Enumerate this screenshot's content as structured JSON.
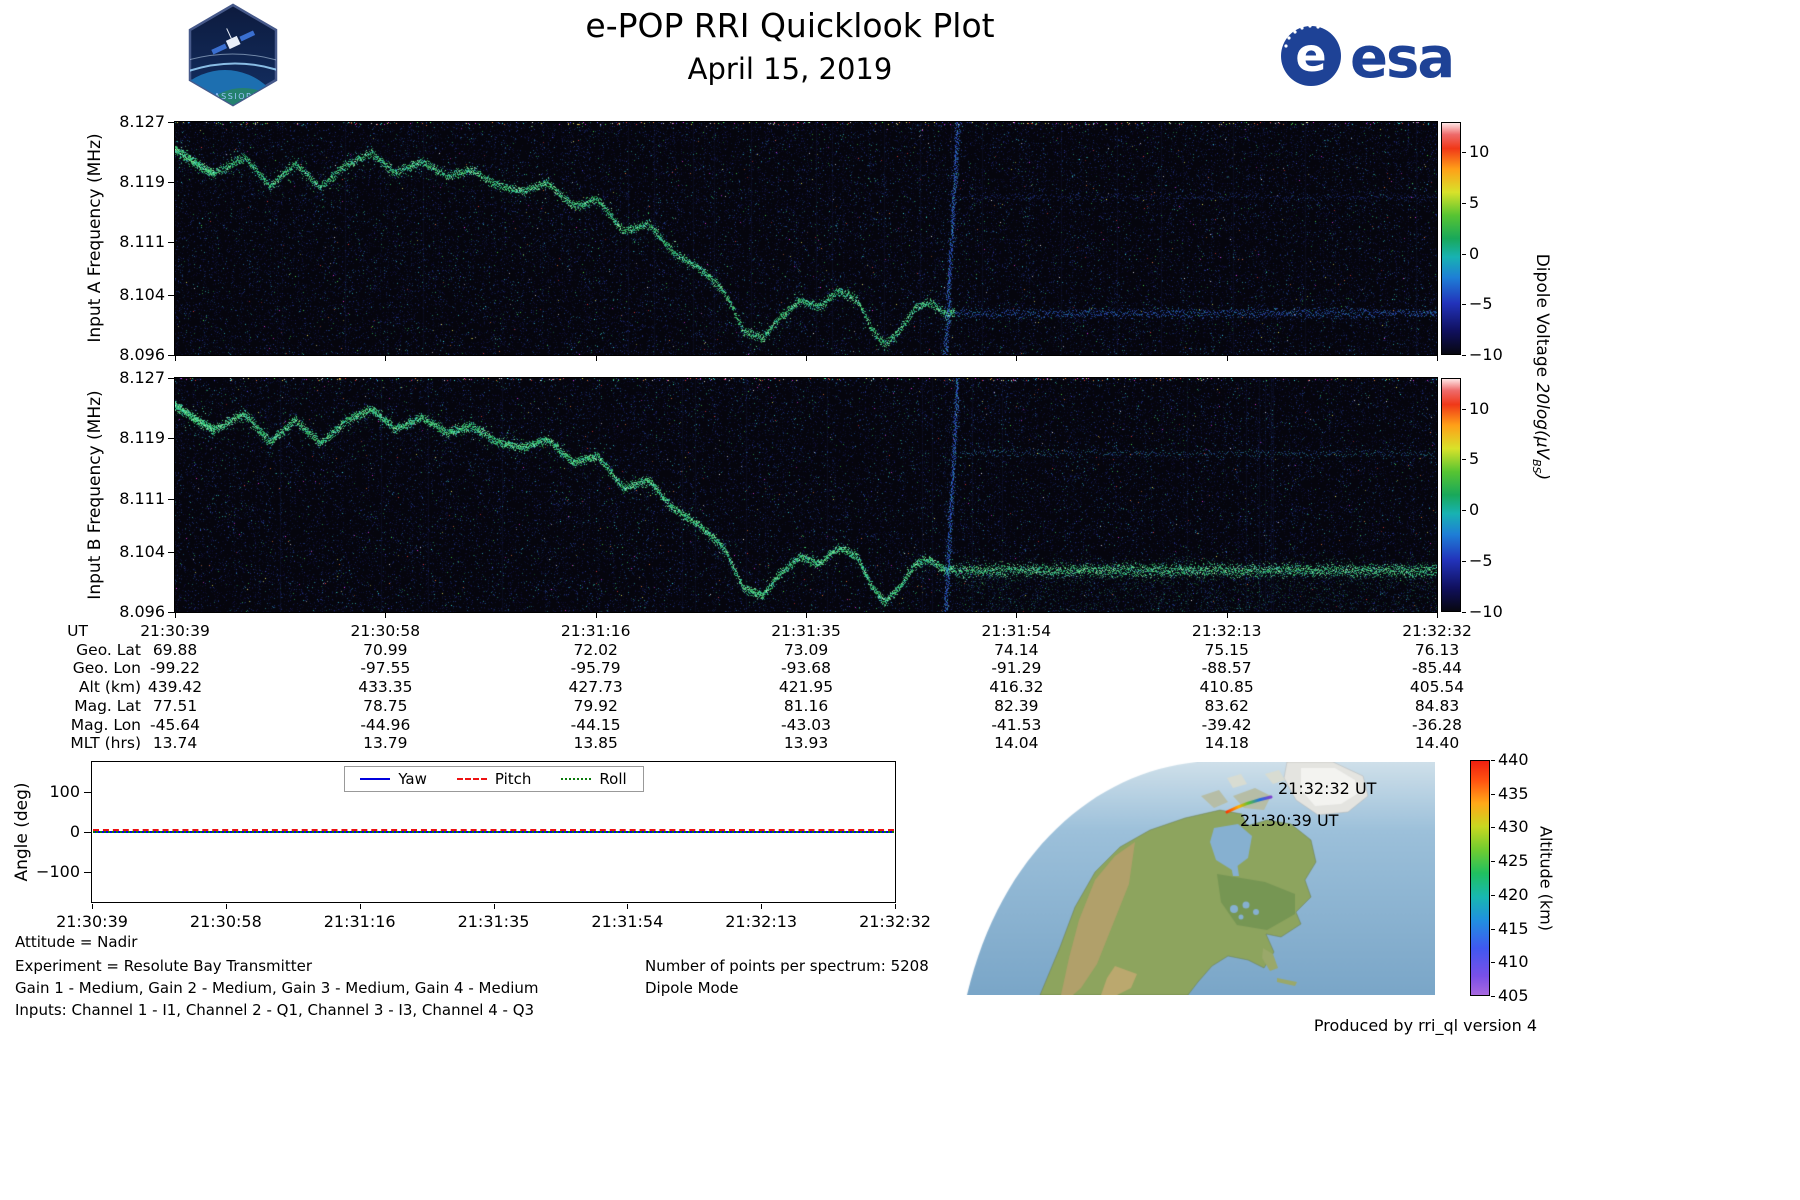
{
  "header": {
    "title": "e-POP RRI Quicklook Plot",
    "date": "April 15, 2019",
    "esa_wordmark": "esa",
    "cassiope_wordmark": "CASSIOPE"
  },
  "footer": {
    "left_lines": [
      "Attitude = Nadir",
      "Experiment = Resolute Bay Transmitter",
      "Gain 1 - Medium, Gain 2 - Medium, Gain 3 - Medium, Gain 4 - Medium",
      "Inputs: Channel 1 - I1, Channel 2 - Q1, Channel 3 - I3, Channel 4 - Q3"
    ],
    "center_lines": [
      "Number of points per spectrum: 5208",
      "Dipole Mode"
    ],
    "credit": "Produced by rri_ql version 4"
  },
  "chart_data": [
    {
      "id": "input_a_spectrogram",
      "type": "heatmap",
      "ylabel": "Input A Frequency (MHz)",
      "ylim_mhz": [
        8.096,
        8.127
      ],
      "yticks_mhz": [
        8.127,
        8.119,
        8.111,
        8.104,
        8.096
      ],
      "x_start_ut": "21:30:39",
      "x_end_ut": "21:32:32",
      "colorbar": {
        "label_text": "Dipole Voltage ",
        "label_math": "20log(μV",
        "label_sub": "BS",
        "label_close": ")",
        "ticks": [
          10,
          5,
          0,
          -5,
          -10
        ],
        "range": [
          -10,
          13
        ],
        "colormap_stops": [
          [
            0,
            "#070710"
          ],
          [
            0.1,
            "#10105e"
          ],
          [
            0.22,
            "#2233bb"
          ],
          [
            0.33,
            "#1e7ed6"
          ],
          [
            0.42,
            "#18b2b2"
          ],
          [
            0.5,
            "#19a85a"
          ],
          [
            0.6,
            "#57c432"
          ],
          [
            0.7,
            "#d8e22a"
          ],
          [
            0.8,
            "#ffa018"
          ],
          [
            0.89,
            "#f03818"
          ],
          [
            0.95,
            "#ee6a6a"
          ],
          [
            1,
            "#ffe6e6"
          ]
        ]
      },
      "features": {
        "background": "dark sparse noise speckle with faint vertical streaks",
        "descending_signal_trace_mhz": [
          [
            0,
            8.1235
          ],
          [
            0.03,
            8.1205
          ],
          [
            0.055,
            8.1225
          ],
          [
            0.075,
            8.1185
          ],
          [
            0.095,
            8.1215
          ],
          [
            0.115,
            8.1185
          ],
          [
            0.135,
            8.1215
          ],
          [
            0.155,
            8.123
          ],
          [
            0.175,
            8.12
          ],
          [
            0.195,
            8.1215
          ],
          [
            0.215,
            8.1195
          ],
          [
            0.235,
            8.1205
          ],
          [
            0.255,
            8.1185
          ],
          [
            0.275,
            8.1175
          ],
          [
            0.295,
            8.1185
          ],
          [
            0.315,
            8.1155
          ],
          [
            0.335,
            8.1165
          ],
          [
            0.355,
            8.1125
          ],
          [
            0.375,
            8.1135
          ],
          [
            0.395,
            8.1095
          ],
          [
            0.415,
            8.1075
          ],
          [
            0.435,
            8.1045
          ],
          [
            0.45,
            8.0995
          ],
          [
            0.465,
            8.0985
          ],
          [
            0.48,
            8.1015
          ],
          [
            0.495,
            8.1035
          ],
          [
            0.51,
            8.1025
          ],
          [
            0.525,
            8.1045
          ],
          [
            0.54,
            8.1035
          ],
          [
            0.552,
            8.0995
          ],
          [
            0.562,
            8.0975
          ],
          [
            0.574,
            8.0995
          ],
          [
            0.586,
            8.1025
          ],
          [
            0.598,
            8.103
          ],
          [
            0.61,
            8.1015
          ]
        ],
        "transition_x_frac": 0.618,
        "post_transition_band_mhz": 8.1015,
        "post_transition_band_style": "faint blue speckle band",
        "secondary_band_mhz": 8.117
      }
    },
    {
      "id": "input_b_spectrogram",
      "type": "heatmap",
      "ylabel": "Input B Frequency (MHz)",
      "ylim_mhz": [
        8.096,
        8.127
      ],
      "yticks_mhz": [
        8.127,
        8.119,
        8.111,
        8.104,
        8.096
      ],
      "x_start_ut": "21:30:39",
      "x_end_ut": "21:32:32",
      "features": {
        "signal_trace": "same descending trace as Input A",
        "transition_x_frac": 0.618,
        "post_transition_band_mhz": 8.1015,
        "post_transition_band_style": "bright green speckle band with noise tail down to 8.096",
        "secondary_band_mhz": 8.117
      }
    },
    {
      "id": "ephemeris_table",
      "type": "table",
      "rows": [
        {
          "label": "UT",
          "values": [
            "21:30:39",
            "21:30:58",
            "21:31:16",
            "21:31:35",
            "21:31:54",
            "21:32:13",
            "21:32:32"
          ]
        },
        {
          "label": "Geo. Lat",
          "values": [
            "69.88",
            "70.99",
            "72.02",
            "73.09",
            "74.14",
            "75.15",
            "76.13"
          ]
        },
        {
          "label": "Geo. Lon",
          "values": [
            "-99.22",
            "-97.55",
            "-95.79",
            "-93.68",
            "-91.29",
            "-88.57",
            "-85.44"
          ]
        },
        {
          "label": "Alt (km)",
          "values": [
            "439.42",
            "433.35",
            "427.73",
            "421.95",
            "416.32",
            "410.85",
            "405.54"
          ]
        },
        {
          "label": "Mag. Lat",
          "values": [
            "77.51",
            "78.75",
            "79.92",
            "81.16",
            "82.39",
            "83.62",
            "84.83"
          ]
        },
        {
          "label": "Mag. Lon",
          "values": [
            "-45.64",
            "-44.96",
            "-44.15",
            "-43.03",
            "-41.53",
            "-39.42",
            "-36.28"
          ]
        },
        {
          "label": "MLT (hrs)",
          "values": [
            "13.74",
            "13.79",
            "13.85",
            "13.93",
            "14.04",
            "14.18",
            "14.40"
          ]
        }
      ]
    },
    {
      "id": "attitude_angles",
      "type": "line",
      "ylabel": "Angle (deg)",
      "ylim": [
        -175,
        175
      ],
      "yticks": [
        100,
        0,
        -100
      ],
      "xticklabels": [
        "21:30:39",
        "21:30:58",
        "21:31:16",
        "21:31:35",
        "21:31:54",
        "21:32:13",
        "21:32:32"
      ],
      "legend_position": "top center",
      "series": [
        {
          "name": "Yaw",
          "color": "#0000dd",
          "style": "solid",
          "approx_value_deg": 0
        },
        {
          "name": "Pitch",
          "color": "#ee1111",
          "style": "dashed",
          "approx_value_deg": 4
        },
        {
          "name": "Roll",
          "color": "#0a7a0a",
          "style": "dotted",
          "approx_value_deg": 1
        }
      ]
    },
    {
      "id": "ground_track_map",
      "type": "map",
      "region": "North America, curved projection edge at upper left",
      "track_labels": [
        "21:32:32 UT",
        "21:30:39 UT"
      ],
      "track_alt_start_km": 439.42,
      "track_alt_end_km": 405.54,
      "colorbar": {
        "label": "Altitude (km)",
        "ticks": [
          440,
          435,
          430,
          425,
          420,
          415,
          410,
          405
        ],
        "range": [
          405,
          440
        ],
        "colormap_stops": [
          [
            0,
            "#a868e0"
          ],
          [
            0.08,
            "#7a50e8"
          ],
          [
            0.2,
            "#4058f0"
          ],
          [
            0.32,
            "#2090e0"
          ],
          [
            0.42,
            "#18b8b0"
          ],
          [
            0.52,
            "#20c060"
          ],
          [
            0.62,
            "#70cc30"
          ],
          [
            0.72,
            "#c8d820"
          ],
          [
            0.82,
            "#ffa818"
          ],
          [
            0.92,
            "#ff5010"
          ],
          [
            1,
            "#ee2010"
          ]
        ]
      }
    }
  ]
}
